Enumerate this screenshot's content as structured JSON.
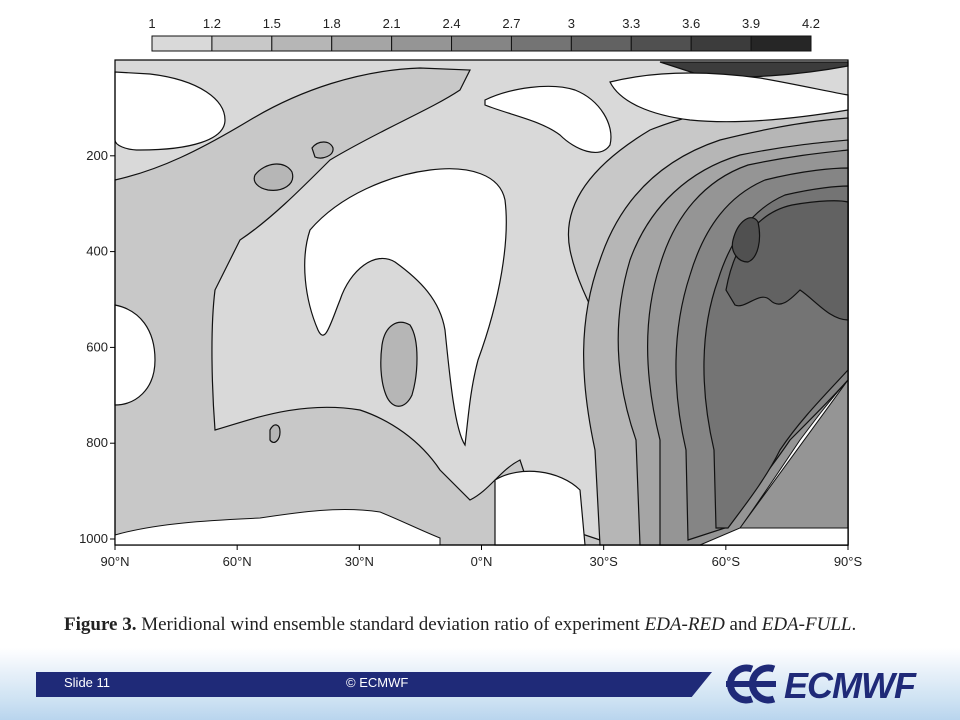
{
  "chart_data": {
    "type": "heatmap",
    "title": "",
    "colorbar_ticks": [
      "1",
      "1.2",
      "1.5",
      "1.8",
      "2.1",
      "2.4",
      "2.7",
      "3",
      "3.3",
      "3.6",
      "3.9",
      "4.2"
    ],
    "colorbar_colors": [
      "#d9d9d9",
      "#c8c8c8",
      "#b6b6b6",
      "#a5a5a5",
      "#959595",
      "#858585",
      "#747474",
      "#626262",
      "#505050",
      "#3c3c3c",
      "#262626"
    ],
    "x_ticks": [
      "90°N",
      "60°N",
      "30°N",
      "0°N",
      "30°S",
      "60°S",
      "90°S"
    ],
    "x_values": [
      -90,
      -60,
      -30,
      0,
      30,
      60,
      90
    ],
    "xlim": [
      -90,
      90
    ],
    "y_ticks": [
      "200",
      "400",
      "600",
      "800",
      "1000"
    ],
    "y_values": [
      200,
      400,
      600,
      800,
      1000
    ],
    "ylim": [
      0,
      1000
    ],
    "y_inverted": true,
    "contour_levels": [
      1,
      1.2,
      1.5,
      1.8,
      2.1,
      2.4,
      2.7,
      3,
      3.3,
      3.6,
      3.9,
      4.2
    ]
  },
  "caption": {
    "label": "Figure 3.",
    "text_1": "Meridional wind ensemble standard deviation ratio of experiment",
    "exp_1": "EDA-RED",
    "text_2": "and",
    "exp_2": "EDA-FULL",
    "end": "."
  },
  "footer": {
    "slide": "Slide 11",
    "copyright": "© ECMWF",
    "logo_text": "ECMWF",
    "bar_color": "#1f2a78"
  }
}
